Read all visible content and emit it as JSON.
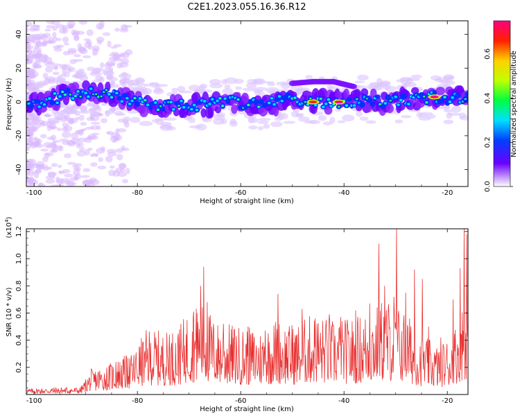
{
  "title": "C2E1.2023.055.16.36.R12",
  "chart_data": [
    {
      "type": "heatmap",
      "xlabel": "Height of straight line (km)",
      "ylabel": "Frequency (Hz)",
      "xlim": [
        -101.5,
        -16
      ],
      "ylim": [
        -50,
        48
      ],
      "xticks": [
        -100,
        -80,
        -60,
        -40,
        -20
      ],
      "yticks": [
        -40,
        -20,
        0,
        20,
        40
      ],
      "colorbar": {
        "label": "Normalized spectral amplitude",
        "range": [
          0,
          0.75
        ],
        "ticks": [
          0.0,
          0.2,
          0.4,
          0.6
        ],
        "colors": [
          "#ffffff",
          "#6a00ff",
          "#0040ff",
          "#00e0ff",
          "#00ff40",
          "#c0ff00",
          "#ffd000",
          "#ff2000",
          "#ff0080"
        ]
      },
      "ridge_frequency_hz": [
        {
          "x": -101,
          "y": -2
        },
        {
          "x": -98,
          "y": 0
        },
        {
          "x": -95,
          "y": 3
        },
        {
          "x": -92,
          "y": 5
        },
        {
          "x": -89,
          "y": 6
        },
        {
          "x": -86,
          "y": 5
        },
        {
          "x": -83,
          "y": 2
        },
        {
          "x": -80,
          "y": 0
        },
        {
          "x": -77,
          "y": -3
        },
        {
          "x": -74,
          "y": -3
        },
        {
          "x": -71,
          "y": -2
        },
        {
          "x": -68,
          "y": -2
        },
        {
          "x": -65,
          "y": -1
        },
        {
          "x": -62,
          "y": 0
        },
        {
          "x": -59,
          "y": -1
        },
        {
          "x": -56,
          "y": -2
        },
        {
          "x": -53,
          "y": 0
        },
        {
          "x": -50,
          "y": 2
        },
        {
          "x": -47,
          "y": 1
        },
        {
          "x": -44,
          "y": 0
        },
        {
          "x": -41,
          "y": 0
        },
        {
          "x": -38,
          "y": 0
        },
        {
          "x": -35,
          "y": 1
        },
        {
          "x": -32,
          "y": 0
        },
        {
          "x": -29,
          "y": 1
        },
        {
          "x": -26,
          "y": 2
        },
        {
          "x": -23,
          "y": 3
        },
        {
          "x": -20,
          "y": 2
        },
        {
          "x": -17,
          "y": 3
        }
      ],
      "upper_branch_hz": [
        {
          "x": -50,
          "y": 11
        },
        {
          "x": -46,
          "y": 12
        },
        {
          "x": -42,
          "y": 12
        },
        {
          "x": -38,
          "y": 9
        }
      ],
      "peaks": [
        {
          "x": -41,
          "y": 0,
          "amplitude": 0.72
        },
        {
          "x": -22.5,
          "y": 3,
          "amplitude": 0.74
        },
        {
          "x": -46,
          "y": 0,
          "amplitude": 0.65
        }
      ]
    },
    {
      "type": "line",
      "xlabel": "Height of straight line (km)",
      "ylabel": "SNR (10 * v/v)",
      "multiplier": "(x10",
      "multiplier_exp": "4",
      "multiplier_close": ")",
      "xlim": [
        -101.5,
        -16
      ],
      "ylim": [
        0,
        1.22
      ],
      "xticks": [
        -100,
        -80,
        -60,
        -40,
        -20
      ],
      "yticks": [
        0.2,
        0.4,
        0.6,
        0.8,
        1.0,
        1.2
      ],
      "color": "#e83030",
      "envelope": [
        {
          "x": -101.5,
          "y": 0.04
        },
        {
          "x": -95,
          "y": 0.05
        },
        {
          "x": -91,
          "y": 0.05
        },
        {
          "x": -89,
          "y": 0.17
        },
        {
          "x": -86,
          "y": 0.2
        },
        {
          "x": -84,
          "y": 0.24
        },
        {
          "x": -81,
          "y": 0.28
        },
        {
          "x": -78,
          "y": 0.45
        },
        {
          "x": -75,
          "y": 0.42
        },
        {
          "x": -72,
          "y": 0.45
        },
        {
          "x": -70,
          "y": 0.58
        },
        {
          "x": -67,
          "y": 0.62
        },
        {
          "x": -65,
          "y": 0.5
        },
        {
          "x": -60,
          "y": 0.46
        },
        {
          "x": -56,
          "y": 0.44
        },
        {
          "x": -53,
          "y": 0.52
        },
        {
          "x": -50,
          "y": 0.46
        },
        {
          "x": -46,
          "y": 0.55
        },
        {
          "x": -42,
          "y": 0.5
        },
        {
          "x": -38,
          "y": 0.52
        },
        {
          "x": -35,
          "y": 0.58
        },
        {
          "x": -32,
          "y": 0.66
        },
        {
          "x": -28,
          "y": 0.56
        },
        {
          "x": -25,
          "y": 0.4
        },
        {
          "x": -22,
          "y": 0.34
        },
        {
          "x": -19,
          "y": 0.4
        },
        {
          "x": -17.5,
          "y": 0.62
        },
        {
          "x": -16,
          "y": 0.8
        }
      ],
      "spikes": [
        {
          "x": -88.8,
          "y": 0.17
        },
        {
          "x": -84.2,
          "y": 0.24
        },
        {
          "x": -81.9,
          "y": 0.27
        },
        {
          "x": -78.6,
          "y": 0.32
        },
        {
          "x": -76.5,
          "y": 0.42
        },
        {
          "x": -73.8,
          "y": 0.44
        },
        {
          "x": -71.9,
          "y": 0.48
        },
        {
          "x": -69.2,
          "y": 0.61
        },
        {
          "x": -68.5,
          "y": 0.6
        },
        {
          "x": -67.8,
          "y": 0.8
        },
        {
          "x": -67.2,
          "y": 0.94
        },
        {
          "x": -66.5,
          "y": 0.68
        },
        {
          "x": -63.4,
          "y": 0.52
        },
        {
          "x": -58.6,
          "y": 0.5
        },
        {
          "x": -55.3,
          "y": 0.47
        },
        {
          "x": -52.8,
          "y": 0.74
        },
        {
          "x": -50.1,
          "y": 0.51
        },
        {
          "x": -48.2,
          "y": 0.63
        },
        {
          "x": -45.6,
          "y": 0.56
        },
        {
          "x": -42.9,
          "y": 0.59
        },
        {
          "x": -40.7,
          "y": 0.57
        },
        {
          "x": -37.8,
          "y": 0.62
        },
        {
          "x": -35.1,
          "y": 0.67
        },
        {
          "x": -33.3,
          "y": 1.11
        },
        {
          "x": -32.2,
          "y": 0.8
        },
        {
          "x": -30.4,
          "y": 0.72
        },
        {
          "x": -29.9,
          "y": 1.22
        },
        {
          "x": -28.1,
          "y": 0.75
        },
        {
          "x": -26.4,
          "y": 0.92
        },
        {
          "x": -24.9,
          "y": 0.85
        },
        {
          "x": -23.7,
          "y": 0.5
        },
        {
          "x": -21.3,
          "y": 0.42
        },
        {
          "x": -18.9,
          "y": 0.7
        },
        {
          "x": -17.6,
          "y": 0.93
        },
        {
          "x": -16.8,
          "y": 1.22
        },
        {
          "x": -16.3,
          "y": 1.18
        }
      ]
    }
  ]
}
